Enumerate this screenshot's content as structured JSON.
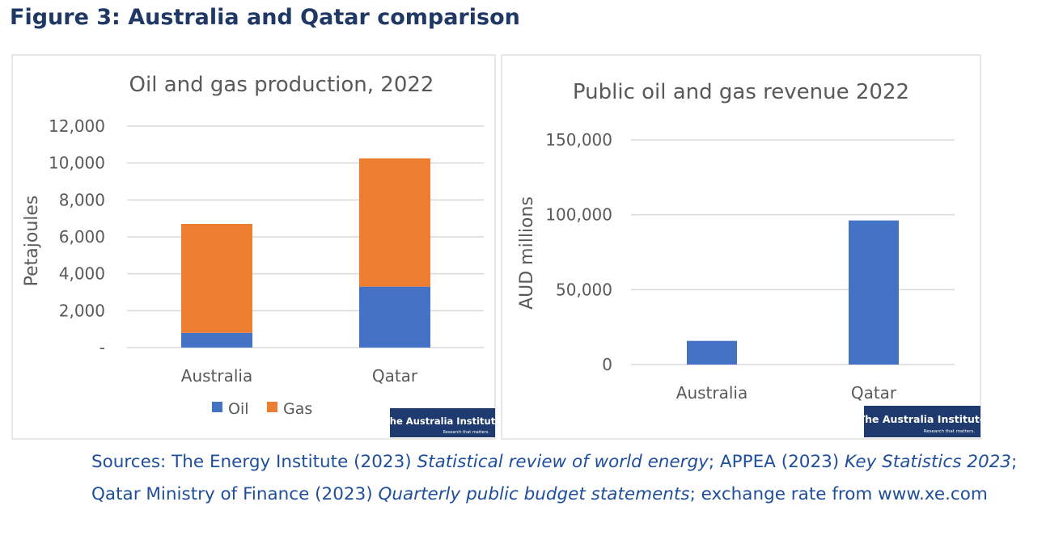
{
  "figure_title": "Figure 3: Australia and Qatar comparison",
  "logo_text": "The Australia Institute",
  "logo_tagline": "Research that matters.",
  "sources": [
    {
      "text": "Sources: The Energy Institute (2023) ",
      "italic": false
    },
    {
      "text": "Statistical review of world energy",
      "italic": true
    },
    {
      "text": "; APPEA (2023) ",
      "italic": false
    },
    {
      "text": "Key Statistics 2023",
      "italic": true
    },
    {
      "text": "; Qatar Ministry of Finance (2023) ",
      "italic": false
    },
    {
      "text": "Quarterly public budget statements",
      "italic": true
    },
    {
      "text": "; exchange rate from www.xe.com",
      "italic": false
    }
  ],
  "colors": {
    "oil": "#4472C4",
    "gas": "#ED7D31",
    "title": "#1F3864",
    "sources": "#1F4E9A",
    "logo": "#1F3A6E"
  },
  "chart_data": [
    {
      "type": "bar",
      "stacked": true,
      "title": "Oil and gas production, 2022",
      "ylabel": "Petajoules",
      "xlabel": "",
      "categories": [
        "Australia",
        "Qatar"
      ],
      "series": [
        {
          "name": "Oil",
          "values": [
            800,
            3300
          ]
        },
        {
          "name": "Gas",
          "values": [
            5900,
            6950
          ]
        }
      ],
      "ylim": [
        0,
        12000
      ],
      "yticks": [
        0,
        2000,
        4000,
        6000,
        8000,
        10000,
        12000
      ],
      "ytick_labels": [
        "-",
        "2,000",
        "4,000",
        "6,000",
        "8,000",
        "10,000",
        "12,000"
      ],
      "grid": true,
      "legend": "bottom"
    },
    {
      "type": "bar",
      "title": "Public oil and gas revenue 2022",
      "ylabel": "AUD millions",
      "xlabel": "",
      "categories": [
        "Australia",
        "Qatar"
      ],
      "values": [
        15800,
        96200
      ],
      "ylim": [
        0,
        150000
      ],
      "yticks": [
        0,
        50000,
        100000,
        150000
      ],
      "ytick_labels": [
        "0",
        "50,000",
        "100,000",
        "150,000"
      ],
      "grid": true,
      "legend": "none"
    }
  ]
}
